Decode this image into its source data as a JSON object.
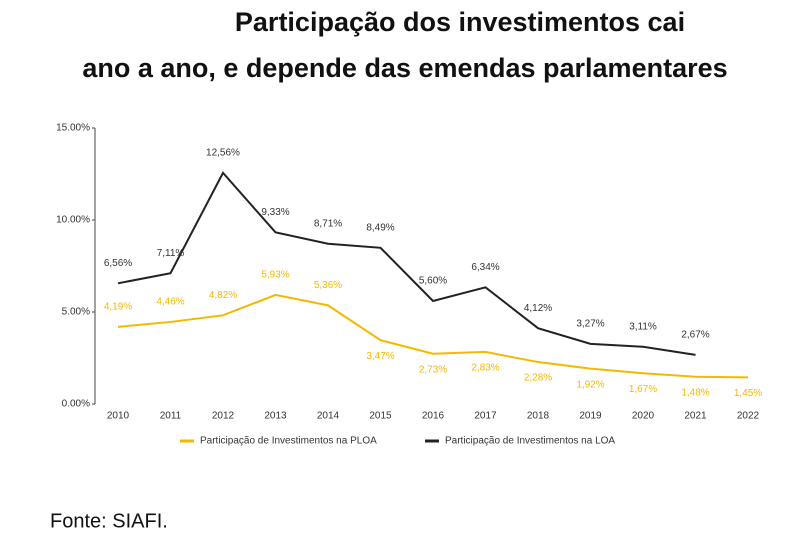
{
  "chart_data": {
    "type": "line",
    "title": [
      "Participação dos investimentos cai",
      "ano a ano, e depende das emendas parlamentares"
    ],
    "source": "Fonte: SIAFI.",
    "categories": [
      "2010",
      "2011",
      "2012",
      "2013",
      "2014",
      "2015",
      "2016",
      "2017",
      "2018",
      "2019",
      "2020",
      "2021",
      "2022"
    ],
    "series": [
      {
        "name": "Participação de Investimentos na PLOA",
        "color": "#f5b800",
        "values": [
          4.19,
          4.46,
          4.82,
          5.93,
          5.36,
          3.47,
          2.73,
          2.83,
          2.28,
          1.92,
          1.67,
          1.48,
          1.45
        ],
        "value_labels": [
          "4,19%",
          "4,46%",
          "4,82%",
          "5,93%",
          "5,36%",
          "3,47%",
          "2,73%",
          "2,83%",
          "2,28%",
          "1,92%",
          "1,67%",
          "1,48%",
          "1,45%"
        ]
      },
      {
        "name": "Participação de Investimentos na LOA",
        "color": "#222222",
        "values": [
          6.56,
          7.11,
          12.56,
          9.33,
          8.71,
          8.49,
          5.6,
          6.34,
          4.12,
          3.27,
          3.11,
          2.67,
          null
        ],
        "value_labels": [
          "6,56%",
          "7,11%",
          "12,56%",
          "9,33%",
          "8,71%",
          "8,49%",
          "5,60%",
          "6,34%",
          "4,12%",
          "3,27%",
          "3,11%",
          "2,67%",
          null
        ]
      }
    ],
    "ylim": [
      0,
      15
    ],
    "yticks": [
      {
        "value": 0,
        "label": "0.00%"
      },
      {
        "value": 5,
        "label": "5.00%"
      },
      {
        "value": 10,
        "label": "10.00%"
      },
      {
        "value": 15,
        "label": "15.00%"
      }
    ],
    "legend": "bottom"
  }
}
